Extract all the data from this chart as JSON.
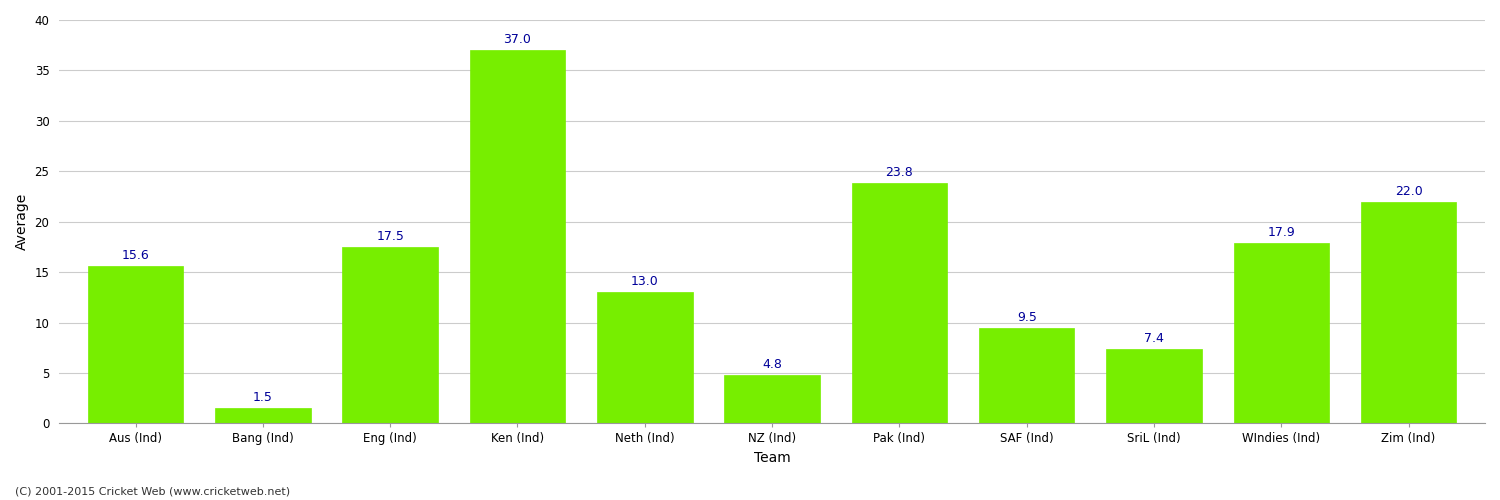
{
  "categories": [
    "Aus (Ind)",
    "Bang (Ind)",
    "Eng (Ind)",
    "Ken (Ind)",
    "Neth (Ind)",
    "NZ (Ind)",
    "Pak (Ind)",
    "SAF (Ind)",
    "SriL (Ind)",
    "WIndies (Ind)",
    "Zim (Ind)"
  ],
  "values": [
    15.6,
    1.5,
    17.5,
    37.0,
    13.0,
    4.8,
    23.8,
    9.5,
    7.4,
    17.9,
    22.0
  ],
  "bar_color": "#77ee00",
  "bar_edge_color": "#77ee00",
  "label_color": "#000099",
  "xlabel": "Team",
  "ylabel": "Average",
  "ylim": [
    0,
    40
  ],
  "yticks": [
    0,
    5,
    10,
    15,
    20,
    25,
    30,
    35,
    40
  ],
  "grid_color": "#cccccc",
  "background_color": "#ffffff",
  "figure_background": "#ffffff",
  "footnote": "(C) 2001-2015 Cricket Web (www.cricketweb.net)",
  "label_fontsize": 9,
  "axis_label_fontsize": 10,
  "tick_fontsize": 8.5,
  "footnote_fontsize": 8,
  "bar_width": 0.75
}
